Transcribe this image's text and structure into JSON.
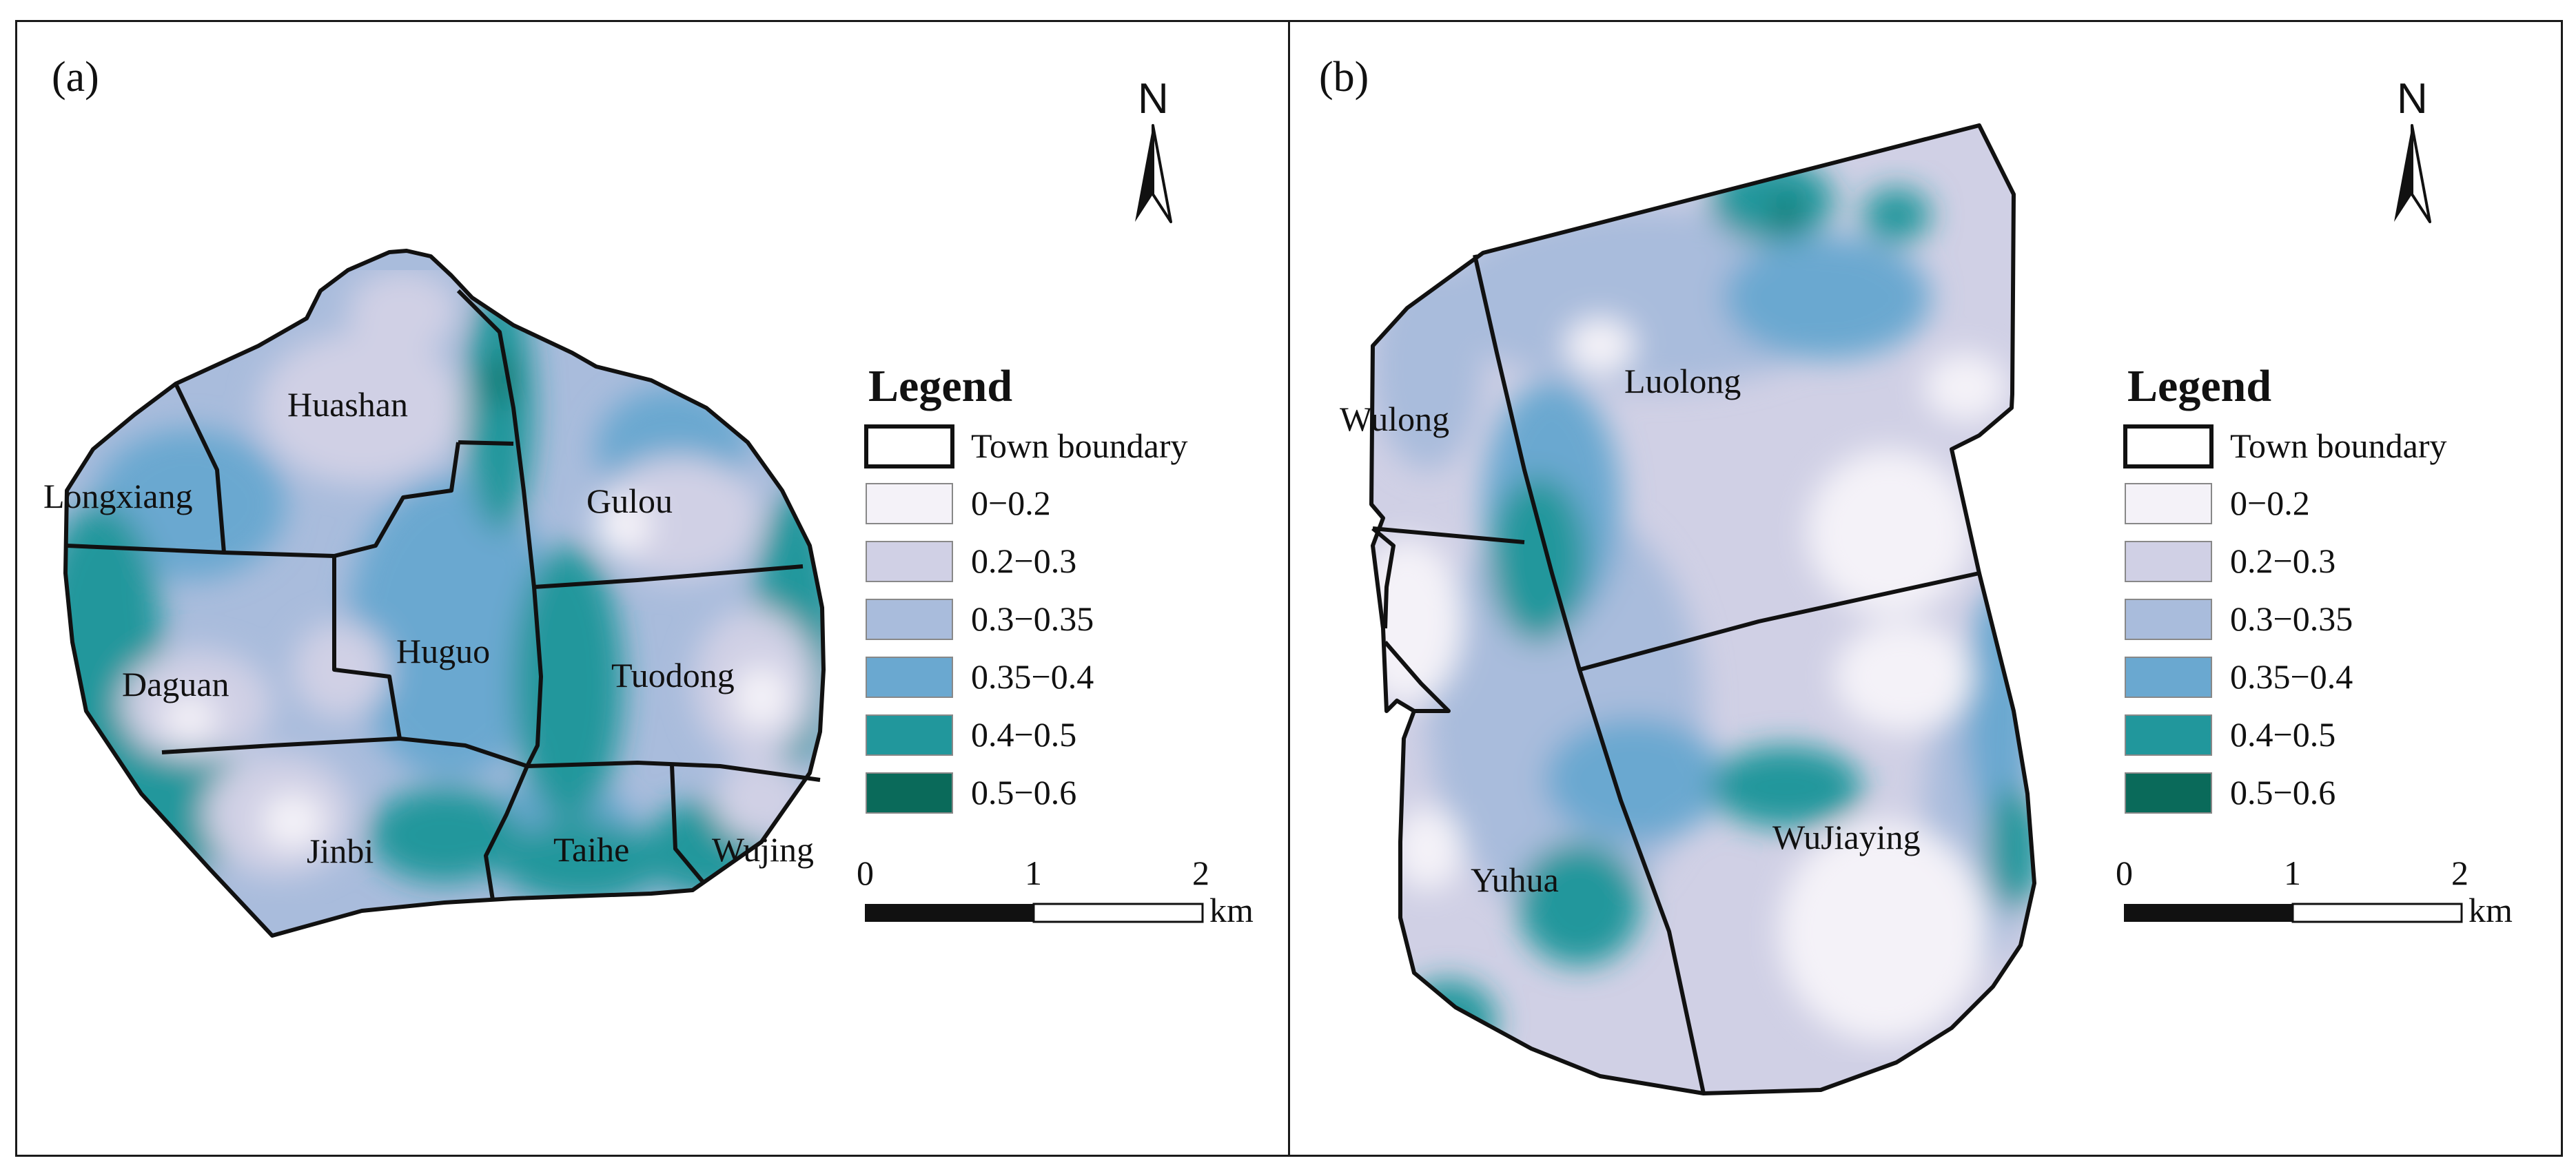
{
  "colors": {
    "c1": "#f4f2f8",
    "c2": "#d0d0e5",
    "c3": "#a9bcdc",
    "c4": "#6aa8d0",
    "c5": "#21979c",
    "c6": "#0a6a5a",
    "boundary": "#111111"
  },
  "panels": [
    {
      "label": "(a)",
      "towns": [
        "Huashan",
        "Longxiang",
        "Gulou",
        "Huguo",
        "Daguan",
        "Tuodong",
        "Jinbi",
        "Taihe",
        "Wujing"
      ]
    },
    {
      "label": "(b)",
      "towns": [
        "Wulong",
        "Luolong",
        "Yuhua",
        "WuJiaying"
      ]
    }
  ],
  "north_arrow": {
    "letter": "N"
  },
  "legend": {
    "title": "Legend",
    "boundary_label": "Town boundary",
    "classes": [
      {
        "label": "0−0.2",
        "color": "#f4f2f8"
      },
      {
        "label": "0.2−0.3",
        "color": "#d0d0e5"
      },
      {
        "label": "0.3−0.35",
        "color": "#a9bcdc"
      },
      {
        "label": "0.35−0.4",
        "color": "#6aa8d0"
      },
      {
        "label": "0.4−0.5",
        "color": "#21979c"
      },
      {
        "label": "0.5−0.6",
        "color": "#0a6a5a"
      }
    ]
  },
  "scale_bar": {
    "ticks": [
      "0",
      "1",
      "2"
    ],
    "unit": "km"
  }
}
